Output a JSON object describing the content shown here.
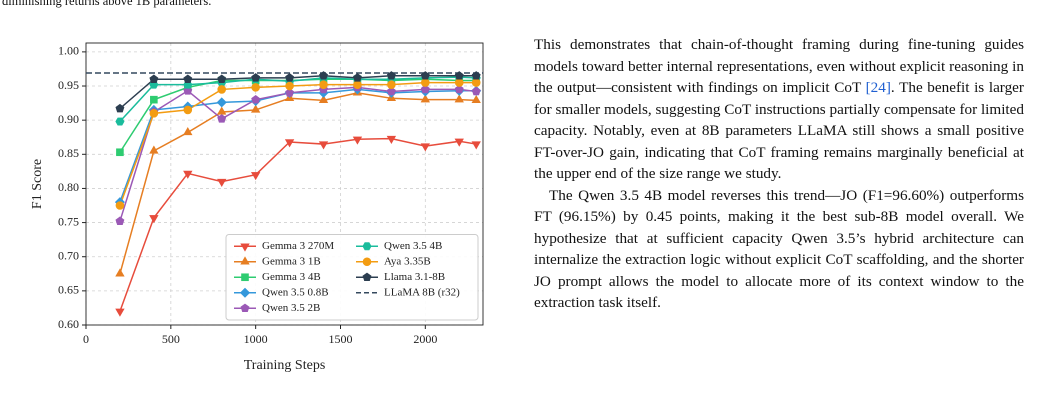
{
  "caption_fragment": "diminishing returns above 1B parameters.",
  "chart_data": {
    "type": "line",
    "xlabel": "Training Steps",
    "ylabel": "F1 Score",
    "x": [
      200,
      400,
      600,
      800,
      1000,
      1200,
      1400,
      1600,
      1800,
      2000,
      2200,
      2300
    ],
    "xlim": [
      0,
      2340
    ],
    "ylim": [
      0.6,
      1.013
    ],
    "xticks": [
      0,
      500,
      1000,
      1500,
      2000
    ],
    "yticks": [
      {
        "value": 0.6,
        "label": "0.60"
      },
      {
        "value": 0.65,
        "label": "0.65"
      },
      {
        "value": 0.7,
        "label": "0.70"
      },
      {
        "value": 0.75,
        "label": "0.75"
      },
      {
        "value": 0.8,
        "label": "0.80"
      },
      {
        "value": 0.85,
        "label": "0.85"
      },
      {
        "value": 0.9,
        "label": "0.90"
      },
      {
        "value": 0.95,
        "label": "0.95"
      },
      {
        "value": 1.0,
        "label": "1.00"
      }
    ],
    "grid": true,
    "legend": "lower right",
    "series": [
      {
        "name": "Gemma 3 270M",
        "color": "#e74c3c",
        "marker": "triangle-down",
        "values": [
          0.62,
          0.757,
          0.822,
          0.81,
          0.82,
          0.868,
          0.865,
          0.872,
          0.873,
          0.862,
          0.869,
          0.865
        ]
      },
      {
        "name": "Gemma 3 1B",
        "color": "#e67e22",
        "marker": "triangle-up",
        "values": [
          0.675,
          0.855,
          0.882,
          0.912,
          0.915,
          0.932,
          0.929,
          0.94,
          0.932,
          0.93,
          0.93,
          0.929
        ]
      },
      {
        "name": "Gemma 3 4B",
        "color": "#2ecc71",
        "marker": "square",
        "values": [
          0.853,
          0.93,
          0.948,
          0.958,
          0.958,
          0.958,
          0.96,
          0.96,
          0.958,
          0.96,
          0.958,
          0.958
        ]
      },
      {
        "name": "Qwen 3.5 0.8B",
        "color": "#3498db",
        "marker": "diamond",
        "values": [
          0.78,
          0.915,
          0.92,
          0.926,
          0.928,
          0.94,
          0.94,
          0.945,
          0.94,
          0.942,
          0.943,
          0.943
        ]
      },
      {
        "name": "Qwen 3.5 2B",
        "color": "#9b59b6",
        "marker": "pentagon",
        "values": [
          0.752,
          0.912,
          0.943,
          0.902,
          0.93,
          0.94,
          0.945,
          0.948,
          0.942,
          0.945,
          0.945,
          0.942
        ]
      },
      {
        "name": "Qwen 3.5 4B",
        "color": "#1abc9c",
        "marker": "hexagon",
        "values": [
          0.898,
          0.952,
          0.952,
          0.955,
          0.96,
          0.957,
          0.962,
          0.96,
          0.96,
          0.962,
          0.963,
          0.962
        ]
      },
      {
        "name": "Aya 3.35B",
        "color": "#f39c12",
        "marker": "circle",
        "values": [
          0.775,
          0.91,
          0.915,
          0.945,
          0.948,
          0.95,
          0.952,
          0.952,
          0.952,
          0.955,
          0.955,
          0.955
        ]
      },
      {
        "name": "Llama 3.1-8B",
        "color": "#2c3e50",
        "marker": "pentagon",
        "values": [
          0.917,
          0.96,
          0.96,
          0.96,
          0.962,
          0.962,
          0.965,
          0.962,
          0.965,
          0.965,
          0.965,
          0.965
        ]
      }
    ],
    "reference_lines": [
      {
        "name": "LLaMA 8B (r32)",
        "color": "#34495e",
        "style": "dashed",
        "value": 0.969
      }
    ]
  },
  "paragraphs": [
    {
      "before": "This demonstrates that chain-of-thought framing during fine-tuning guides models toward better internal representations, even without explicit reasoning in the output—consistent with findings on implicit CoT ",
      "citation": "[24]",
      "after": ". The benefit is larger for smaller models, suggesting CoT instructions partially compensate for limited capacity. Notably, even at 8B parameters LLaMA still shows a small positive FT-over-JO gain, indicating that CoT framing remains marginally beneficial at the upper end of the size range we study."
    },
    {
      "text": "The Qwen 3.5 4B model reverses this trend—JO (F1=96.60%) outperforms FT (96.15%) by 0.45 points, making it the best sub-8B model overall. We hypothesize that at sufficient capacity Qwen 3.5’s hybrid architecture can internalize the extraction logic without explicit CoT scaffolding, and the shorter JO prompt allows the model to allocate more of its context window to the extraction task itself."
    }
  ]
}
